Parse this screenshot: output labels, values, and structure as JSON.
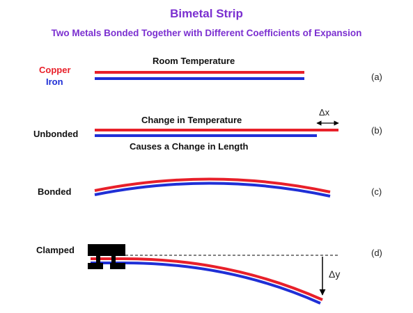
{
  "header": {
    "title": "Bimetal Strip",
    "subtitle": "Two Metals Bonded Together with Different Coefficients of Expansion",
    "title_color": "#7b2fd0"
  },
  "legend": {
    "copper": "Copper",
    "iron": "Iron",
    "copper_color": "#e8202a",
    "iron_color": "#1f2fd6"
  },
  "panel_a": {
    "caption": "Room Temperature",
    "tag": "(a)"
  },
  "panel_b": {
    "side_label": "Unbonded",
    "caption_top": "Change in Temperature",
    "caption_bottom": "Causes a Change in Length",
    "delta_label": "Δx",
    "tag": "(b)"
  },
  "panel_c": {
    "side_label": "Bonded",
    "tag": "(c)"
  },
  "panel_d": {
    "side_label": "Clamped",
    "delta_label": "Δy",
    "tag": "(d)"
  }
}
